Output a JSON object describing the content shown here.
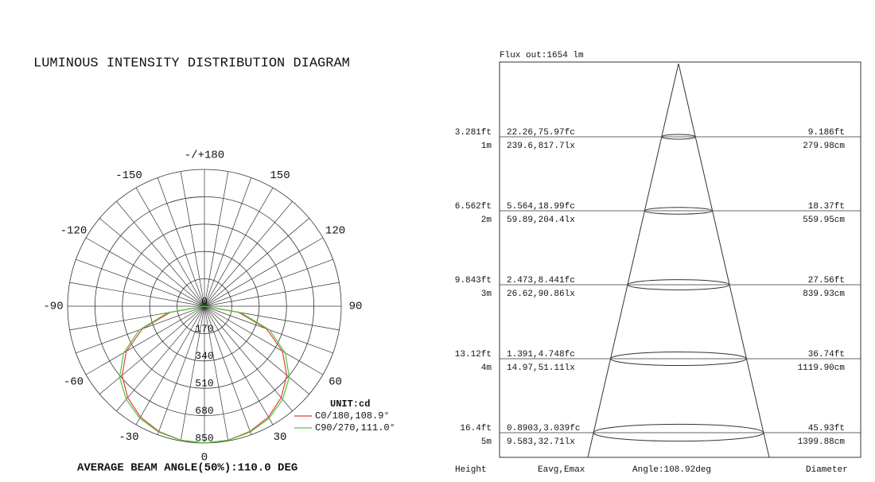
{
  "title": "LUMINOUS INTENSITY DISTRIBUTION DIAGRAM",
  "chart_data": {
    "type": "polar",
    "angle_ticks": [
      {
        "value": 180,
        "label": "-/+180"
      },
      -150,
      -120,
      -90,
      -60,
      -30,
      0,
      30,
      60,
      90,
      120,
      150
    ],
    "rlim": [
      0,
      850
    ],
    "rticks": [
      0,
      170,
      340,
      510,
      680,
      850
    ],
    "unit": "UNIT:cd",
    "angles": [
      -90,
      -80,
      -70,
      -60,
      -50,
      -40,
      -30,
      -20,
      -10,
      0,
      10,
      20,
      30,
      40,
      50,
      60,
      70,
      80,
      90
    ],
    "series": [
      {
        "name": "C0/180,108.9°",
        "color": "#e0403c",
        "values": [
          0,
          215,
          410,
          560,
          668,
          742,
          795,
          828,
          845,
          850,
          845,
          828,
          795,
          742,
          668,
          560,
          410,
          215,
          0
        ]
      },
      {
        "name": "C90/270,111.0°",
        "color": "#4cc83c",
        "values": [
          0,
          230,
          430,
          580,
          688,
          756,
          804,
          832,
          846,
          850,
          846,
          832,
          804,
          756,
          688,
          580,
          430,
          230,
          0
        ]
      }
    ],
    "footer": "AVERAGE BEAM ANGLE(50%):110.0 DEG"
  },
  "cone": {
    "flux": "Flux out:1654 lm",
    "rows": [
      {
        "height_ft": "3.281ft",
        "height_m": "1m",
        "e_fc": "22.26,75.97fc",
        "e_lx": "239.6,817.7lx",
        "diam_ft": "9.186ft",
        "diam_cm": "279.98cm"
      },
      {
        "height_ft": "6.562ft",
        "height_m": "2m",
        "e_fc": "5.564,18.99fc",
        "e_lx": "59.89,204.4lx",
        "diam_ft": "18.37ft",
        "diam_cm": "559.95cm"
      },
      {
        "height_ft": "9.843ft",
        "height_m": "3m",
        "e_fc": "2.473,8.441fc",
        "e_lx": "26.62,90.86lx",
        "diam_ft": "27.56ft",
        "diam_cm": "839.93cm"
      },
      {
        "height_ft": "13.12ft",
        "height_m": "4m",
        "e_fc": "1.391,4.748fc",
        "e_lx": "14.97,51.11lx",
        "diam_ft": "36.74ft",
        "diam_cm": "1119.90cm"
      },
      {
        "height_ft": "16.4ft",
        "height_m": "5m",
        "e_fc": "0.8903,3.039fc",
        "e_lx": "9.583,32.71lx",
        "diam_ft": "45.93ft",
        "diam_cm": "1399.88cm"
      }
    ],
    "footer": [
      "Height",
      "Eavg,Emax",
      "Angle:108.92deg",
      "Diameter"
    ]
  }
}
